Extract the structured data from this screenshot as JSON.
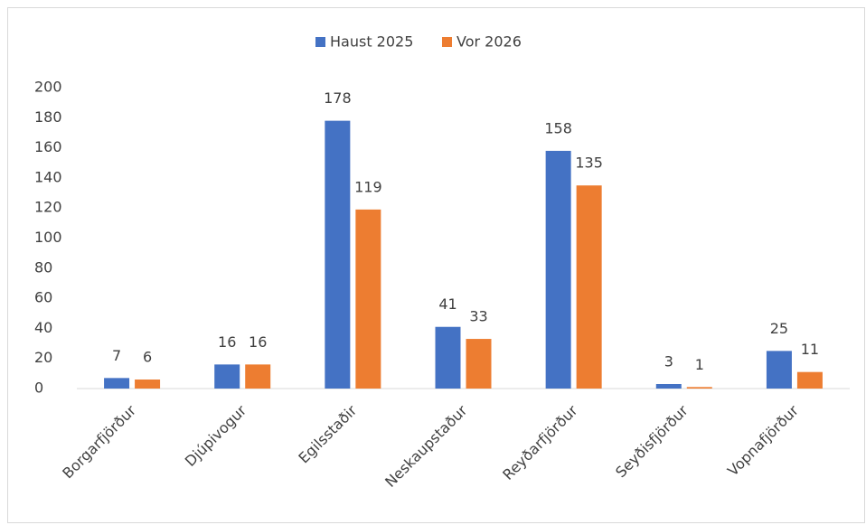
{
  "chart_data": {
    "type": "bar",
    "categories": [
      "Borgarfjörður",
      "Djúpivogur",
      "Egilsstaðir",
      "Neskaupstaður",
      "Reyðarfjörður",
      "Seyðisfjörður",
      "Vopnafjörður"
    ],
    "series": [
      {
        "name": "Haust 2025",
        "color": "#4472c4",
        "values": [
          7,
          16,
          178,
          41,
          158,
          3,
          25
        ]
      },
      {
        "name": "Vor 2026",
        "color": "#ed7d31",
        "values": [
          6,
          16,
          119,
          33,
          135,
          1,
          11
        ]
      }
    ],
    "ylim": [
      0,
      200
    ],
    "yticks": [
      0,
      20,
      40,
      60,
      80,
      100,
      120,
      140,
      160,
      180,
      200
    ],
    "grid": false,
    "legend": "top"
  }
}
